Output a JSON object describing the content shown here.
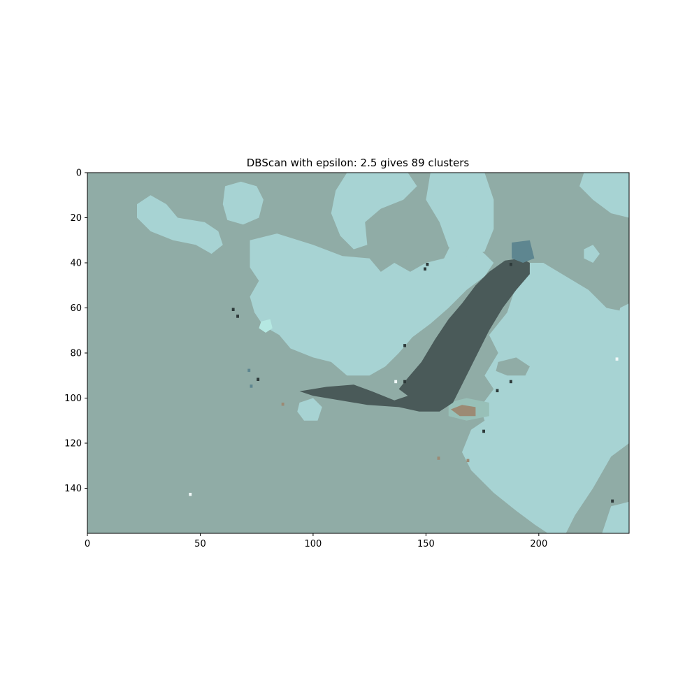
{
  "chart_data": {
    "type": "heatmap",
    "title": "DBScan with epsilon: 2.5 gives 89 clusters",
    "xlabel": "",
    "ylabel": "",
    "xlim": [
      0,
      240
    ],
    "ylim": [
      160,
      0
    ],
    "x_ticks": [
      0,
      50,
      100,
      150,
      200
    ],
    "y_ticks": [
      0,
      20,
      40,
      60,
      80,
      100,
      120,
      140
    ],
    "grid": false,
    "legend": "none",
    "colors": {
      "background_cluster": "#90aca6",
      "light_cluster": "#a7d3d3",
      "edge_cluster": "#98c0b8",
      "boat_cluster": "#4a5a59",
      "bow_cluster": "#5e8690",
      "mint_cluster": "#b5e8e2",
      "brown_cluster": "#9c8a74",
      "dark_speck": "#2e3a3a",
      "light_speck": "#f0f8f8"
    },
    "regions": [
      {
        "cluster": "light_cluster",
        "shape": "blob",
        "points": [
          [
            72,
            30
          ],
          [
            84,
            27
          ],
          [
            100,
            32
          ],
          [
            113,
            37
          ],
          [
            125,
            38
          ],
          [
            130,
            44
          ],
          [
            136,
            40
          ],
          [
            143,
            44
          ],
          [
            150,
            40
          ],
          [
            158,
            38
          ],
          [
            162,
            30
          ],
          [
            168,
            30
          ],
          [
            176,
            36
          ],
          [
            180,
            40
          ],
          [
            176,
            46
          ],
          [
            168,
            52
          ],
          [
            160,
            60
          ],
          [
            152,
            67
          ],
          [
            144,
            73
          ],
          [
            138,
            80
          ],
          [
            132,
            86
          ],
          [
            125,
            90
          ],
          [
            115,
            90
          ],
          [
            108,
            84
          ],
          [
            100,
            82
          ],
          [
            90,
            78
          ],
          [
            85,
            72
          ],
          [
            78,
            68
          ],
          [
            74,
            62
          ],
          [
            72,
            55
          ],
          [
            76,
            48
          ],
          [
            72,
            42
          ]
        ]
      },
      {
        "cluster": "light_cluster",
        "shape": "blob",
        "points": [
          [
            152,
            0
          ],
          [
            176,
            0
          ],
          [
            180,
            12
          ],
          [
            180,
            25
          ],
          [
            176,
            35
          ],
          [
            168,
            37
          ],
          [
            160,
            33
          ],
          [
            156,
            22
          ],
          [
            150,
            12
          ]
        ]
      },
      {
        "cluster": "light_cluster",
        "shape": "blob",
        "points": [
          [
            115,
            0
          ],
          [
            142,
            0
          ],
          [
            146,
            6
          ],
          [
            140,
            12
          ],
          [
            130,
            16
          ],
          [
            123,
            22
          ],
          [
            124,
            32
          ],
          [
            118,
            34
          ],
          [
            112,
            28
          ],
          [
            108,
            18
          ],
          [
            110,
            8
          ]
        ]
      },
      {
        "cluster": "light_cluster",
        "shape": "blob",
        "points": [
          [
            61,
            6
          ],
          [
            68,
            4
          ],
          [
            75,
            6
          ],
          [
            78,
            12
          ],
          [
            76,
            20
          ],
          [
            69,
            23
          ],
          [
            62,
            21
          ],
          [
            60,
            14
          ]
        ]
      },
      {
        "cluster": "light_cluster",
        "shape": "blob",
        "points": [
          [
            22,
            14
          ],
          [
            28,
            10
          ],
          [
            35,
            14
          ],
          [
            40,
            20
          ],
          [
            52,
            22
          ],
          [
            58,
            26
          ],
          [
            60,
            32
          ],
          [
            55,
            36
          ],
          [
            48,
            32
          ],
          [
            38,
            30
          ],
          [
            28,
            26
          ],
          [
            22,
            20
          ]
        ]
      },
      {
        "cluster": "light_cluster",
        "shape": "blob",
        "points": [
          [
            190,
            40
          ],
          [
            202,
            40
          ],
          [
            212,
            46
          ],
          [
            222,
            52
          ],
          [
            230,
            60
          ],
          [
            240,
            62
          ],
          [
            240,
            120
          ],
          [
            232,
            126
          ],
          [
            224,
            140
          ],
          [
            216,
            152
          ],
          [
            212,
            160
          ],
          [
            204,
            160
          ],
          [
            198,
            156
          ],
          [
            190,
            150
          ],
          [
            180,
            142
          ],
          [
            170,
            132
          ],
          [
            166,
            124
          ],
          [
            170,
            114
          ],
          [
            176,
            110
          ],
          [
            174,
            104
          ],
          [
            180,
            96
          ],
          [
            176,
            90
          ],
          [
            182,
            80
          ],
          [
            178,
            72
          ],
          [
            186,
            62
          ],
          [
            190,
            50
          ]
        ]
      },
      {
        "cluster": "light_cluster",
        "shape": "blob",
        "points": [
          [
            220,
            0
          ],
          [
            240,
            0
          ],
          [
            240,
            20
          ],
          [
            232,
            18
          ],
          [
            224,
            12
          ],
          [
            218,
            6
          ]
        ]
      },
      {
        "cluster": "light_cluster",
        "shape": "blob",
        "points": [
          [
            232,
            148
          ],
          [
            240,
            146
          ],
          [
            240,
            160
          ],
          [
            228,
            160
          ]
        ]
      },
      {
        "cluster": "light_cluster",
        "shape": "blob",
        "points": [
          [
            94,
            102
          ],
          [
            100,
            100
          ],
          [
            104,
            104
          ],
          [
            102,
            110
          ],
          [
            96,
            110
          ],
          [
            93,
            106
          ]
        ]
      },
      {
        "cluster": "light_cluster",
        "shape": "blob",
        "points": [
          [
            220,
            34
          ],
          [
            224,
            32
          ],
          [
            227,
            36
          ],
          [
            224,
            40
          ],
          [
            220,
            38
          ]
        ]
      },
      {
        "cluster": "light_cluster",
        "shape": "blob",
        "points": [
          [
            236,
            60
          ],
          [
            240,
            58
          ],
          [
            240,
            76
          ],
          [
            234,
            72
          ]
        ]
      },
      {
        "cluster": "background_cluster",
        "shape": "blob",
        "points": [
          [
            182,
            84
          ],
          [
            190,
            82
          ],
          [
            196,
            86
          ],
          [
            194,
            90
          ],
          [
            186,
            90
          ],
          [
            181,
            88
          ]
        ]
      },
      {
        "cluster": "mint_cluster",
        "shape": "blob",
        "points": [
          [
            77,
            66
          ],
          [
            81,
            65
          ],
          [
            82,
            69
          ],
          [
            79,
            71
          ],
          [
            76,
            69
          ]
        ]
      },
      {
        "cluster": "edge_cluster",
        "shape": "blob",
        "points": [
          [
            160,
            102
          ],
          [
            168,
            100
          ],
          [
            178,
            102
          ],
          [
            178,
            108
          ],
          [
            168,
            110
          ],
          [
            160,
            108
          ]
        ]
      },
      {
        "cluster": "boat_cluster",
        "shape": "blob",
        "points": [
          [
            94,
            97
          ],
          [
            106,
            95
          ],
          [
            118,
            94
          ],
          [
            126,
            97
          ],
          [
            136,
            101
          ],
          [
            142,
            99
          ],
          [
            138,
            96
          ],
          [
            142,
            91
          ],
          [
            148,
            84
          ],
          [
            154,
            74
          ],
          [
            160,
            65
          ],
          [
            166,
            58
          ],
          [
            172,
            50
          ],
          [
            178,
            44
          ],
          [
            185,
            39
          ],
          [
            192,
            38
          ],
          [
            196,
            40
          ],
          [
            196,
            45
          ],
          [
            190,
            52
          ],
          [
            184,
            60
          ],
          [
            178,
            70
          ],
          [
            172,
            82
          ],
          [
            166,
            94
          ],
          [
            162,
            102
          ],
          [
            156,
            106
          ],
          [
            147,
            106
          ],
          [
            138,
            104
          ],
          [
            124,
            103
          ],
          [
            112,
            101
          ],
          [
            100,
            99
          ]
        ]
      },
      {
        "cluster": "bow_cluster",
        "shape": "blob",
        "points": [
          [
            188,
            31
          ],
          [
            196,
            30
          ],
          [
            198,
            38
          ],
          [
            193,
            40
          ],
          [
            188,
            38
          ]
        ]
      },
      {
        "cluster": "brown_cluster",
        "shape": "blob",
        "points": [
          [
            161,
            105
          ],
          [
            166,
            103
          ],
          [
            172,
            104
          ],
          [
            172,
            108
          ],
          [
            165,
            108
          ]
        ]
      }
    ],
    "specks": [
      {
        "cluster": "dark_speck",
        "x": 150,
        "y": 40
      },
      {
        "cluster": "dark_speck",
        "x": 149,
        "y": 42
      },
      {
        "cluster": "dark_speck",
        "x": 64,
        "y": 60
      },
      {
        "cluster": "dark_speck",
        "x": 66,
        "y": 63
      },
      {
        "cluster": "dark_speck",
        "x": 75,
        "y": 91
      },
      {
        "cluster": "dark_speck",
        "x": 181,
        "y": 96
      },
      {
        "cluster": "dark_speck",
        "x": 187,
        "y": 92
      },
      {
        "cluster": "dark_speck",
        "x": 140,
        "y": 92
      },
      {
        "cluster": "dark_speck",
        "x": 140,
        "y": 76
      },
      {
        "cluster": "dark_speck",
        "x": 175,
        "y": 114
      },
      {
        "cluster": "dark_speck",
        "x": 187,
        "y": 40
      },
      {
        "cluster": "dark_speck",
        "x": 232,
        "y": 145
      },
      {
        "cluster": "bow_cluster",
        "x": 71,
        "y": 87
      },
      {
        "cluster": "bow_cluster",
        "x": 72,
        "y": 94
      },
      {
        "cluster": "light_speck",
        "x": 234,
        "y": 82
      },
      {
        "cluster": "light_speck",
        "x": 45,
        "y": 142
      },
      {
        "cluster": "light_speck",
        "x": 136,
        "y": 92
      },
      {
        "cluster": "brown_cluster",
        "x": 155,
        "y": 126
      },
      {
        "cluster": "brown_cluster",
        "x": 168,
        "y": 127
      },
      {
        "cluster": "brown_cluster",
        "x": 86,
        "y": 102
      }
    ]
  }
}
